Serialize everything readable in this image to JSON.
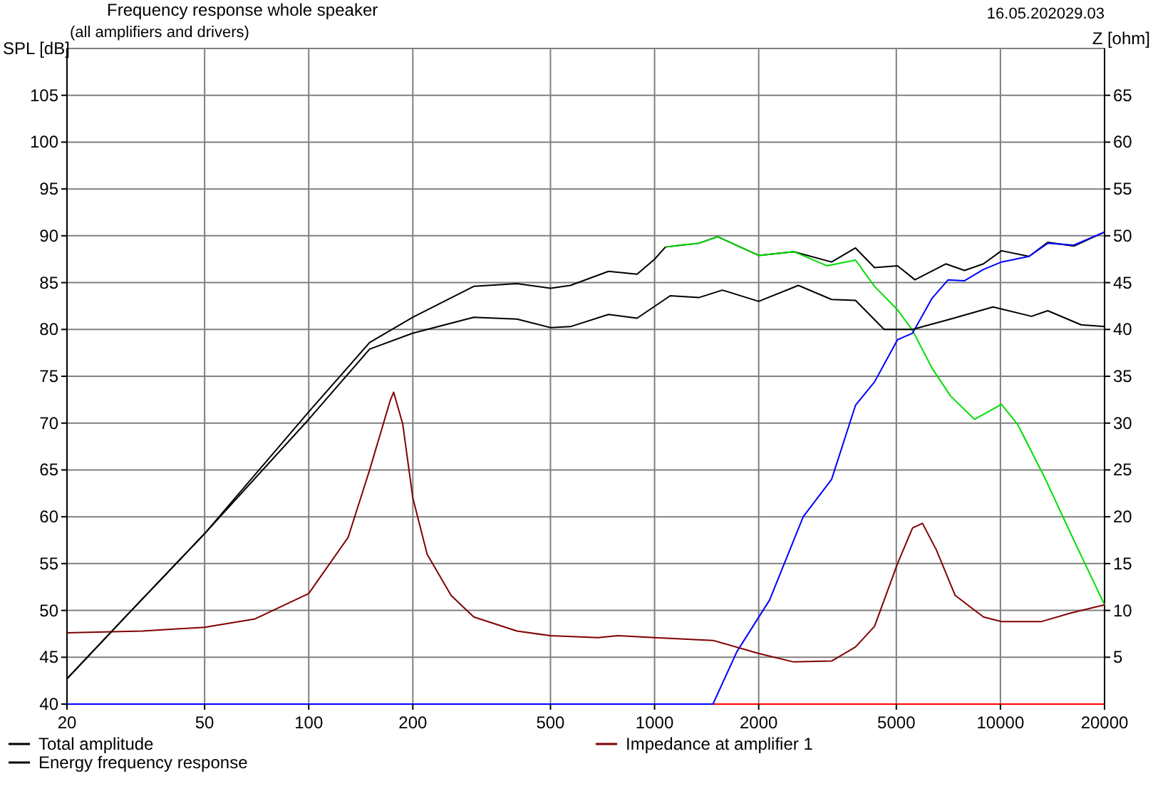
{
  "chart_data": {
    "type": "line",
    "title": "Frequency response whole speaker",
    "subtitle": "(all amplifiers and drivers)",
    "ylabel": "SPL [dB]",
    "y2label": "Z [ohm]",
    "annotations": [
      "16.05.202029.03"
    ],
    "log": "x",
    "grid": true,
    "legend": "bottom",
    "line_style": "solid",
    "xlim": [
      20,
      20000
    ],
    "xticks": [
      20,
      50,
      100,
      200,
      500,
      1000,
      2000,
      5000,
      10000,
      20000
    ],
    "ylim": [
      40,
      110
    ],
    "yticks": [
      40,
      45,
      50,
      55,
      60,
      65,
      70,
      75,
      80,
      85,
      90,
      95,
      100,
      105
    ],
    "y2lim": [
      0,
      70
    ],
    "y2ticks": [
      5,
      10,
      15,
      20,
      25,
      30,
      35,
      40,
      45,
      50,
      55,
      60,
      65
    ],
    "series": [
      {
        "name": "Total amplitude",
        "color": "#000000",
        "x": [
          20,
          30,
          50,
          100,
          150,
          200,
          300,
          400,
          500,
          571,
          736,
          890,
          1000,
          1075,
          1342,
          1522,
          2000,
          2525,
          3250,
          3810,
          4325,
          5040,
          5660,
          6950,
          7875,
          8930,
          10070,
          12100,
          13700,
          16300,
          20000
        ],
        "values": [
          42.7,
          49.6,
          58.2,
          71.2,
          78.6,
          81.3,
          84.6,
          84.9,
          84.4,
          84.7,
          86.2,
          85.9,
          87.5,
          88.8,
          89.2,
          89.9,
          87.9,
          88.3,
          87.2,
          88.7,
          86.6,
          86.8,
          85.3,
          87.0,
          86.3,
          87.0,
          88.4,
          87.8,
          89.3,
          88.9,
          90.4
        ]
      },
      {
        "color": "#00dd00",
        "x": [
          1075,
          1180,
          1342,
          1522,
          2000,
          2525,
          3150,
          3810,
          4325,
          5040,
          5570,
          6335,
          7170,
          8420,
          10070,
          11200,
          13500,
          16300,
          20000
        ],
        "values": [
          88.8,
          89.0,
          89.2,
          89.9,
          87.9,
          88.3,
          86.8,
          87.4,
          84.6,
          82.1,
          79.9,
          75.9,
          72.9,
          70.4,
          72.0,
          69.9,
          64.0,
          57.5,
          50.6
        ]
      },
      {
        "color": "#ff0000",
        "x": [
          1475,
          20000
        ],
        "values": [
          40,
          40
        ]
      },
      {
        "color": "#0000ff",
        "x": [
          20,
          1475,
          1730,
          2150,
          2690,
          3250,
          3810,
          4325,
          5040,
          5570,
          6335,
          7060,
          7875,
          8930,
          10070,
          12100,
          13700,
          16300,
          20000
        ],
        "values": [
          40,
          40,
          45.6,
          51.1,
          60.0,
          64.0,
          71.9,
          74.4,
          78.9,
          79.6,
          83.3,
          85.3,
          85.2,
          86.4,
          87.2,
          87.8,
          89.2,
          89.0,
          90.4
        ]
      },
      {
        "name": "Impedance at amplifier 1",
        "color": "#800000",
        "axis": "y2",
        "x": [
          20,
          33,
          50,
          70,
          100,
          130,
          150,
          172,
          176,
          187,
          200,
          220,
          258,
          300,
          400,
          500,
          686,
          784,
          1000,
          1475,
          2000,
          2525,
          3250,
          3810,
          4325,
          5040,
          5570,
          5950,
          6520,
          7400,
          8930,
          10070,
          13100,
          15900,
          20000
        ],
        "values": [
          7.6,
          7.8,
          8.2,
          9.1,
          11.8,
          17.8,
          25.0,
          32.4,
          33.3,
          29.9,
          22.0,
          16.0,
          11.6,
          9.3,
          7.8,
          7.3,
          7.1,
          7.3,
          7.1,
          6.8,
          5.4,
          4.5,
          4.6,
          6.1,
          8.3,
          15.0,
          18.8,
          19.3,
          16.5,
          11.6,
          9.3,
          8.8,
          8.8,
          9.7,
          10.6
        ]
      },
      {
        "name": "Energy frequency response",
        "color": "#000000",
        "x": [
          20,
          30,
          50,
          100,
          150,
          200,
          300,
          400,
          500,
          571,
          736,
          890,
          1110,
          1342,
          1570,
          2000,
          2605,
          3250,
          3810,
          4610,
          5570,
          7170,
          9520,
          12300,
          13700,
          17100,
          20000
        ],
        "values": [
          42.7,
          49.6,
          58.2,
          70.4,
          77.9,
          79.6,
          81.3,
          81.1,
          80.2,
          80.3,
          81.6,
          81.2,
          83.6,
          83.4,
          84.2,
          83.0,
          84.7,
          83.2,
          83.1,
          80.0,
          80.0,
          81.1,
          82.4,
          81.4,
          82.0,
          80.5,
          80.3
        ]
      }
    ]
  }
}
